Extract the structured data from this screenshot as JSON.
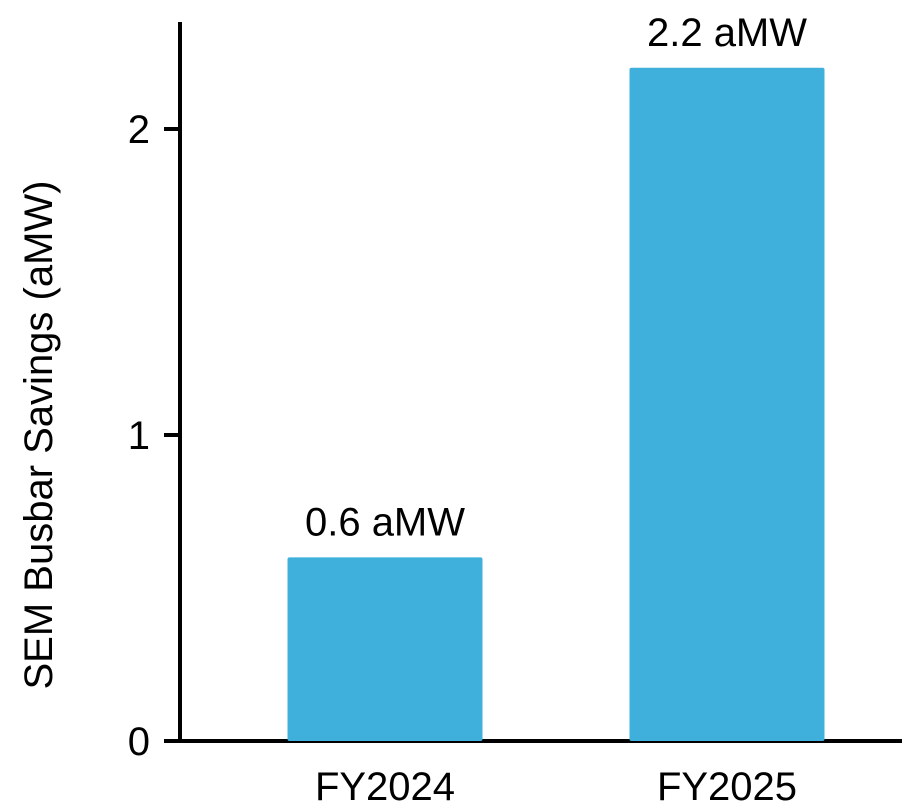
{
  "chart_data": {
    "type": "bar",
    "categories": [
      "FY2024",
      "FY2025"
    ],
    "values": [
      0.6,
      2.2
    ],
    "data_labels": [
      "0.6 aMW",
      "2.2 aMW"
    ],
    "ylabel": "SEM Busbar Savings (aMW)",
    "xlabel": "",
    "ylim": [
      0,
      2.3
    ],
    "yticks": [
      0,
      1,
      2
    ],
    "ytick_labels": [
      "0",
      "1",
      "2"
    ],
    "grid": false,
    "legend": "none",
    "bar_color": "#3EB0DB",
    "axis_color": "#000000"
  }
}
